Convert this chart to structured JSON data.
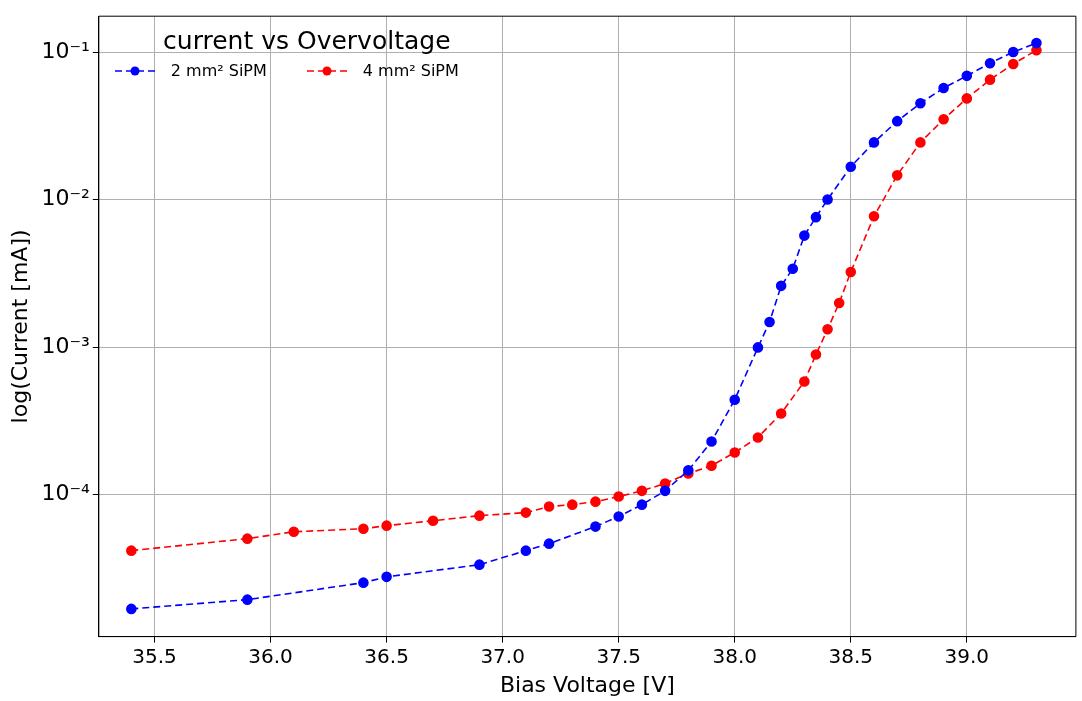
{
  "chart_data": {
    "type": "line",
    "legend_title": "current vs Overvoltage",
    "xlabel": "Bias Voltage [V]",
    "ylabel": "log(Current [mA])",
    "log": "y",
    "grid": true,
    "legend": "top left",
    "marker": "circle",
    "line_style": "dashed",
    "xlim": [
      35.26,
      39.47
    ],
    "xticks": [
      35.5,
      {
        "value": 36,
        "label": "36.0"
      },
      36.5,
      {
        "value": 37,
        "label": "37.0"
      },
      37.5,
      {
        "value": 38,
        "label": "38.0"
      },
      38.5,
      {
        "value": 39,
        "label": "39.0"
      }
    ],
    "ylim": [
      1.09e-05,
      0.175
    ],
    "yticks": [
      {
        "value": 0.0001,
        "label": "10⁻⁴"
      },
      {
        "value": 0.001,
        "label": "10⁻³"
      },
      {
        "value": 0.01,
        "label": "10⁻²"
      },
      {
        "value": 0.1,
        "label": "10⁻¹"
      }
    ],
    "series": [
      {
        "name": "2 mm² SiPM",
        "color": "#0000ff",
        "x": [
          35.4,
          35.9,
          36.4,
          36.5,
          36.9,
          37.1,
          37.2,
          37.4,
          37.5,
          37.6,
          37.7,
          37.8,
          37.9,
          38.0,
          38.1,
          38.15,
          38.2,
          38.25,
          38.3,
          38.35,
          38.4,
          38.5,
          38.6,
          38.7,
          38.8,
          38.9,
          39.0,
          39.1,
          39.2,
          39.3
        ],
        "values": [
          1.68e-05,
          1.94e-05,
          2.53e-05,
          2.77e-05,
          3.35e-05,
          4.17e-05,
          4.65e-05,
          6.07e-05,
          7.1e-05,
          8.55e-05,
          0.000106,
          0.000146,
          0.000229,
          0.00044,
          0.000995,
          0.00148,
          0.0026,
          0.0034,
          0.0057,
          0.0076,
          0.01,
          0.0167,
          0.0244,
          0.034,
          0.045,
          0.057,
          0.069,
          0.084,
          0.1,
          0.115
        ]
      },
      {
        "name": "4 mm² SiPM",
        "color": "#ff0000",
        "x": [
          35.4,
          35.9,
          36.1,
          36.4,
          36.5,
          36.7,
          36.9,
          37.1,
          37.2,
          37.3,
          37.4,
          37.5,
          37.6,
          37.7,
          37.8,
          37.9,
          38.0,
          38.1,
          38.2,
          38.3,
          38.35,
          38.4,
          38.45,
          38.5,
          38.6,
          38.7,
          38.8,
          38.9,
          39.0,
          39.1,
          39.2,
          39.3
        ],
        "values": [
          4.17e-05,
          5.03e-05,
          5.6e-05,
          5.87e-05,
          6.16e-05,
          6.65e-05,
          7.2e-05,
          7.55e-05,
          8.3e-05,
          8.55e-05,
          8.96e-05,
          9.7e-05,
          0.000106,
          0.000119,
          0.000139,
          0.000157,
          0.000193,
          0.000244,
          0.000355,
          0.000585,
          0.00089,
          0.00132,
          0.00199,
          0.00323,
          0.0077,
          0.0146,
          0.0244,
          0.035,
          0.0485,
          0.065,
          0.083,
          0.103
        ]
      }
    ]
  }
}
